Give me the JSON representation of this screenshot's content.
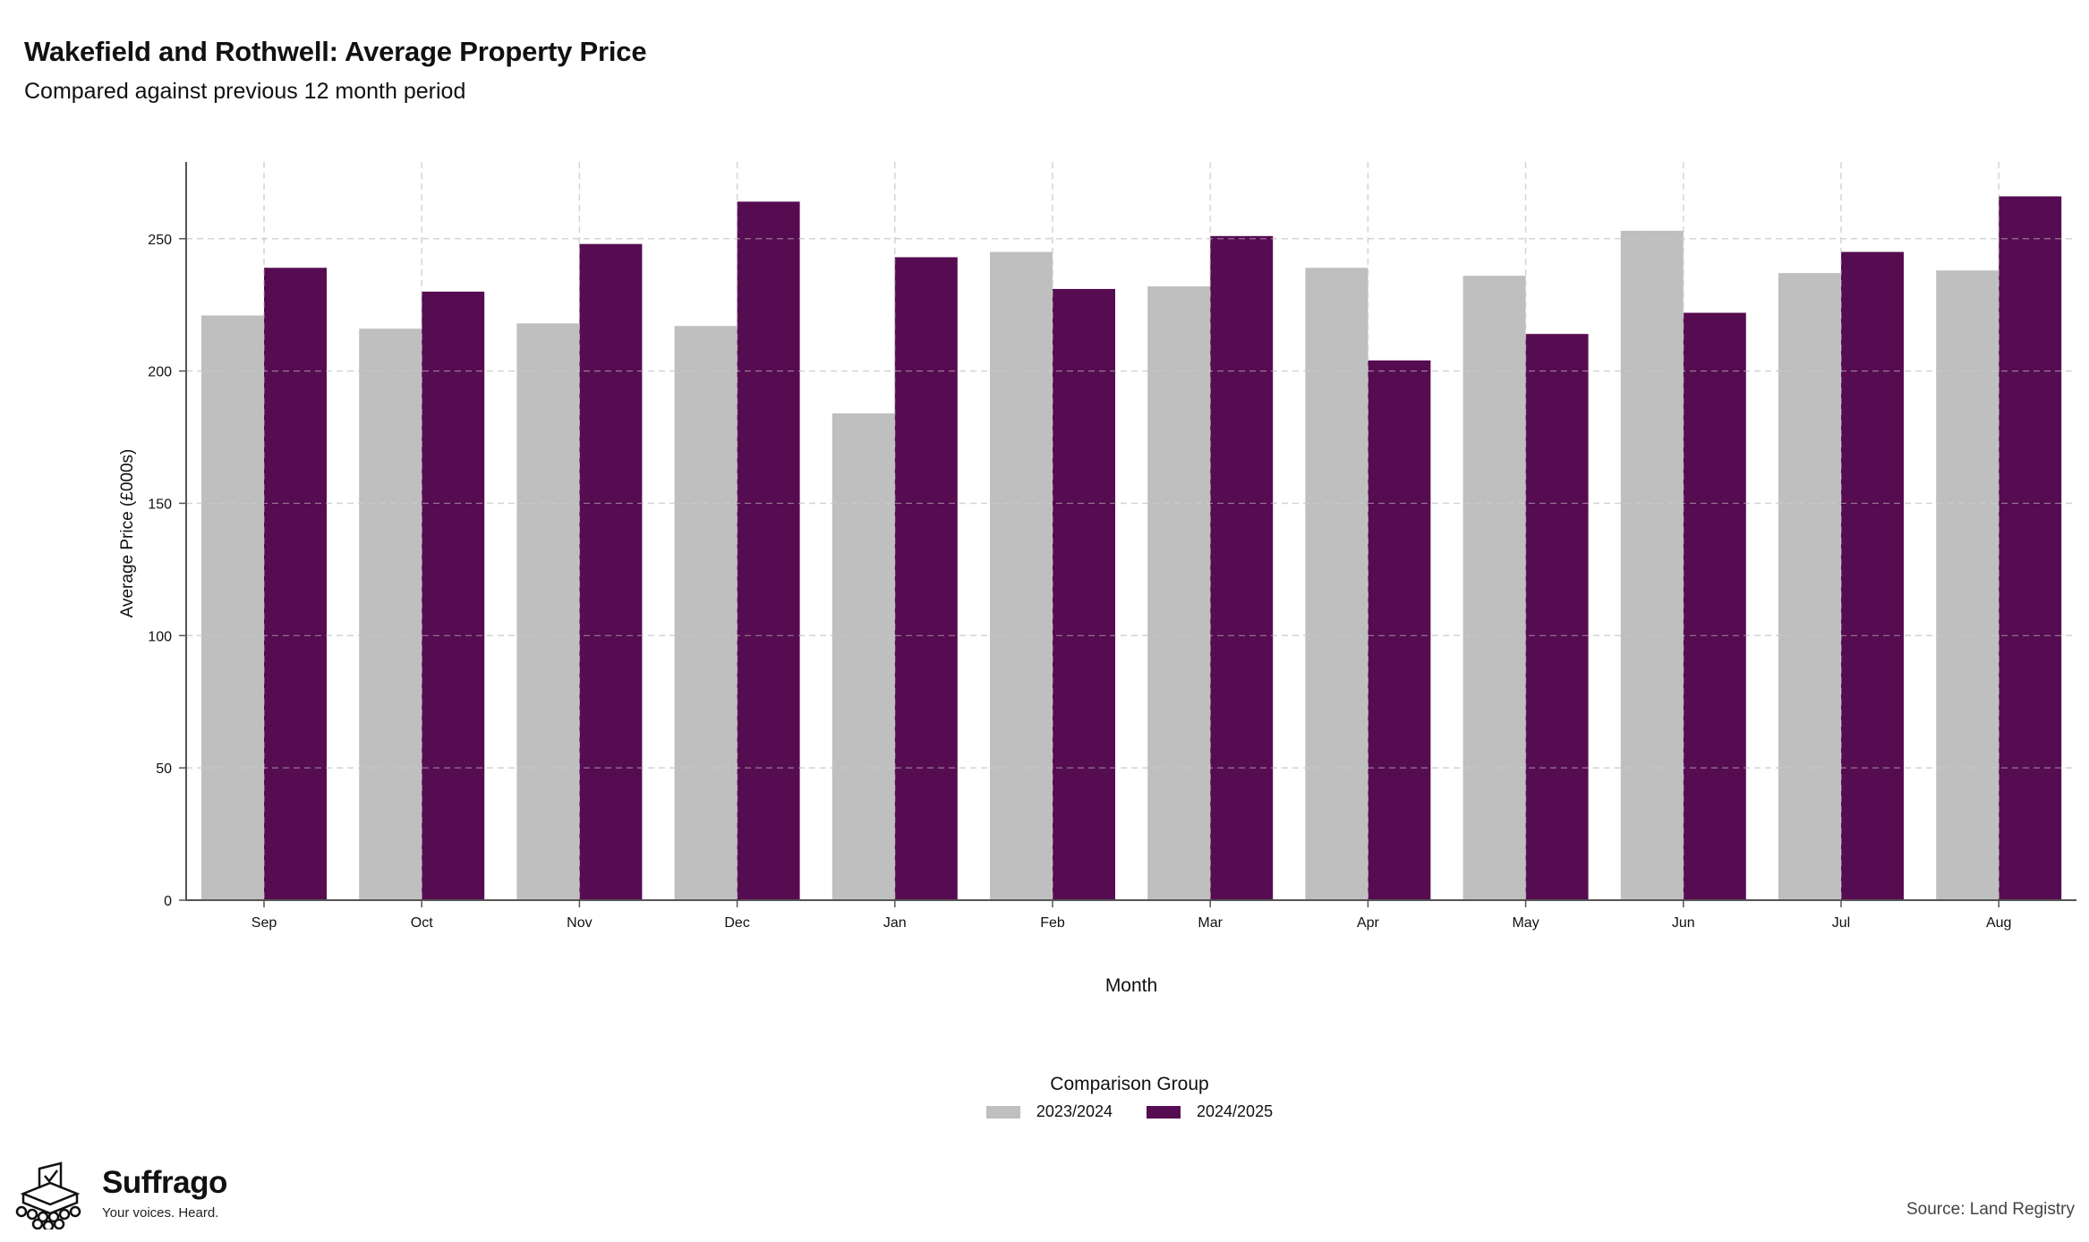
{
  "title": "Wakefield and Rothwell: Average Property Price",
  "subtitle": "Compared against previous 12 month period",
  "chart_data": {
    "type": "bar",
    "xlabel": "Month",
    "ylabel": "Average Price (£000s)",
    "categories": [
      "Sep",
      "Oct",
      "Nov",
      "Dec",
      "Jan",
      "Feb",
      "Mar",
      "Apr",
      "May",
      "Jun",
      "Jul",
      "Aug"
    ],
    "series": [
      {
        "name": "2023/2024",
        "color": "#bfbfbf",
        "values": [
          221,
          216,
          218,
          217,
          184,
          245,
          232,
          239,
          236,
          253,
          237,
          238
        ]
      },
      {
        "name": "2024/2025",
        "color": "#560c51",
        "values": [
          239,
          230,
          248,
          264,
          243,
          231,
          251,
          204,
          214,
          222,
          245,
          266
        ]
      }
    ],
    "ylim": [
      0,
      279
    ],
    "yticks": [
      0,
      50,
      100,
      150,
      200,
      250
    ],
    "grid": true,
    "legend_title": "Comparison Group",
    "legend_position": "bottom"
  },
  "legend": {
    "title": "Comparison Group",
    "items": [
      {
        "label": "2023/2024",
        "color": "#bfbfbf"
      },
      {
        "label": "2024/2025",
        "color": "#560c51"
      }
    ]
  },
  "brand": {
    "name": "Suffrago",
    "tagline": "Your voices. Heard.",
    "logo_icon": "ballot-box-icon"
  },
  "source": "Source: Land Registry"
}
